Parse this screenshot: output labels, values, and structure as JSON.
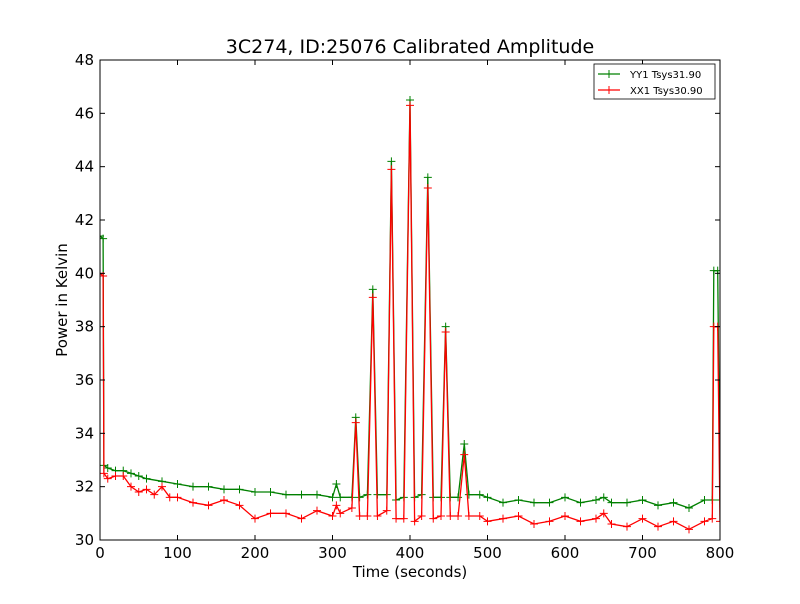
{
  "chart_data": {
    "type": "line",
    "title": "3C274, ID:25076 Calibrated Amplitude",
    "xlabel": "Time (seconds)",
    "ylabel": "Power in Kelvin",
    "xlim": [
      0,
      800
    ],
    "ylim": [
      30,
      48
    ],
    "xticks": [
      "0",
      "100",
      "200",
      "300",
      "400",
      "500",
      "600",
      "700",
      "800"
    ],
    "yticks": [
      "30",
      "32",
      "34",
      "36",
      "38",
      "40",
      "42",
      "44",
      "46",
      "48"
    ],
    "grid": false,
    "legend_position": "top-right",
    "marker": "plus",
    "series": [
      {
        "name": "YY1 Tsys31.90",
        "color": "#008000",
        "points": [
          [
            0,
            41.4
          ],
          [
            4,
            41.3
          ],
          [
            5,
            32.8
          ],
          [
            10,
            32.7
          ],
          [
            20,
            32.6
          ],
          [
            30,
            32.6
          ],
          [
            40,
            32.5
          ],
          [
            50,
            32.4
          ],
          [
            60,
            32.3
          ],
          [
            80,
            32.2
          ],
          [
            100,
            32.1
          ],
          [
            120,
            32.0
          ],
          [
            140,
            32.0
          ],
          [
            160,
            31.9
          ],
          [
            180,
            31.9
          ],
          [
            200,
            31.8
          ],
          [
            220,
            31.8
          ],
          [
            240,
            31.7
          ],
          [
            260,
            31.7
          ],
          [
            280,
            31.7
          ],
          [
            300,
            31.6
          ],
          [
            305,
            32.1
          ],
          [
            310,
            31.6
          ],
          [
            325,
            31.6
          ],
          [
            330,
            34.6
          ],
          [
            335,
            31.6
          ],
          [
            345,
            31.7
          ],
          [
            352,
            39.4
          ],
          [
            358,
            31.7
          ],
          [
            370,
            31.7
          ],
          [
            376,
            44.2
          ],
          [
            382,
            31.5
          ],
          [
            392,
            31.6
          ],
          [
            400,
            46.5
          ],
          [
            406,
            31.6
          ],
          [
            415,
            31.7
          ],
          [
            423,
            43.6
          ],
          [
            430,
            31.6
          ],
          [
            440,
            31.6
          ],
          [
            446,
            38.0
          ],
          [
            452,
            31.6
          ],
          [
            462,
            31.6
          ],
          [
            470,
            33.6
          ],
          [
            476,
            31.7
          ],
          [
            490,
            31.7
          ],
          [
            500,
            31.6
          ],
          [
            520,
            31.4
          ],
          [
            540,
            31.5
          ],
          [
            560,
            31.4
          ],
          [
            580,
            31.4
          ],
          [
            600,
            31.6
          ],
          [
            620,
            31.4
          ],
          [
            640,
            31.5
          ],
          [
            650,
            31.6
          ],
          [
            660,
            31.4
          ],
          [
            680,
            31.4
          ],
          [
            700,
            31.5
          ],
          [
            720,
            31.3
          ],
          [
            740,
            31.4
          ],
          [
            760,
            31.2
          ],
          [
            780,
            31.5
          ],
          [
            790,
            31.5
          ],
          [
            792,
            40.1
          ],
          [
            797,
            40.1
          ],
          [
            800,
            31.5
          ]
        ]
      },
      {
        "name": "XX1 Tsys30.90",
        "color": "#ff0000",
        "points": [
          [
            0,
            40.0
          ],
          [
            4,
            39.9
          ],
          [
            5,
            32.5
          ],
          [
            10,
            32.3
          ],
          [
            20,
            32.4
          ],
          [
            30,
            32.4
          ],
          [
            40,
            32.0
          ],
          [
            50,
            31.8
          ],
          [
            60,
            31.9
          ],
          [
            70,
            31.7
          ],
          [
            80,
            32.0
          ],
          [
            90,
            31.6
          ],
          [
            100,
            31.6
          ],
          [
            120,
            31.4
          ],
          [
            140,
            31.3
          ],
          [
            160,
            31.5
          ],
          [
            180,
            31.3
          ],
          [
            200,
            30.8
          ],
          [
            220,
            31.0
          ],
          [
            240,
            31.0
          ],
          [
            260,
            30.8
          ],
          [
            280,
            31.1
          ],
          [
            300,
            30.9
          ],
          [
            305,
            31.3
          ],
          [
            310,
            31.0
          ],
          [
            325,
            31.2
          ],
          [
            330,
            34.4
          ],
          [
            335,
            30.9
          ],
          [
            345,
            30.9
          ],
          [
            352,
            39.1
          ],
          [
            358,
            30.9
          ],
          [
            370,
            31.1
          ],
          [
            376,
            43.9
          ],
          [
            382,
            30.8
          ],
          [
            392,
            30.8
          ],
          [
            400,
            46.3
          ],
          [
            406,
            30.7
          ],
          [
            415,
            30.9
          ],
          [
            423,
            43.2
          ],
          [
            430,
            30.8
          ],
          [
            440,
            30.9
          ],
          [
            446,
            37.8
          ],
          [
            452,
            30.9
          ],
          [
            462,
            30.9
          ],
          [
            470,
            33.2
          ],
          [
            476,
            30.9
          ],
          [
            490,
            30.9
          ],
          [
            500,
            30.7
          ],
          [
            520,
            30.8
          ],
          [
            540,
            30.9
          ],
          [
            560,
            30.6
          ],
          [
            580,
            30.7
          ],
          [
            600,
            30.9
          ],
          [
            620,
            30.7
          ],
          [
            640,
            30.8
          ],
          [
            650,
            31.0
          ],
          [
            660,
            30.6
          ],
          [
            680,
            30.5
          ],
          [
            700,
            30.8
          ],
          [
            720,
            30.5
          ],
          [
            740,
            30.7
          ],
          [
            760,
            30.4
          ],
          [
            780,
            30.7
          ],
          [
            790,
            30.8
          ],
          [
            792,
            38.0
          ],
          [
            797,
            38.0
          ],
          [
            800,
            30.7
          ]
        ]
      }
    ]
  }
}
